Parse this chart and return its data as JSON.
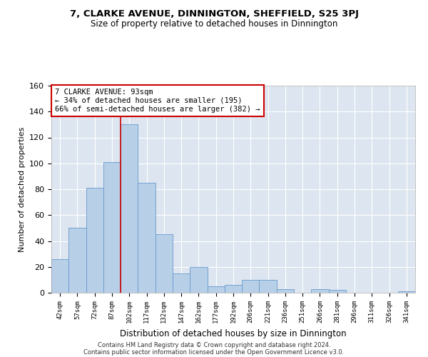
{
  "title": "7, CLARKE AVENUE, DINNINGTON, SHEFFIELD, S25 3PJ",
  "subtitle": "Size of property relative to detached houses in Dinnington",
  "xlabel": "Distribution of detached houses by size in Dinnington",
  "ylabel": "Number of detached properties",
  "categories": [
    "42sqm",
    "57sqm",
    "72sqm",
    "87sqm",
    "102sqm",
    "117sqm",
    "132sqm",
    "147sqm",
    "162sqm",
    "177sqm",
    "192sqm",
    "206sqm",
    "221sqm",
    "236sqm",
    "251sqm",
    "266sqm",
    "281sqm",
    "296sqm",
    "311sqm",
    "326sqm",
    "341sqm"
  ],
  "values": [
    26,
    50,
    81,
    101,
    130,
    85,
    45,
    15,
    20,
    5,
    6,
    10,
    10,
    3,
    0,
    3,
    2,
    0,
    0,
    0,
    1
  ],
  "bar_color": "#b8cfe8",
  "bar_edge_color": "#6699cc",
  "annotation_line1": "7 CLARKE AVENUE: 93sqm",
  "annotation_line2": "← 34% of detached houses are smaller (195)",
  "annotation_line3": "66% of semi-detached houses are larger (382) →",
  "annotation_box_color": "white",
  "annotation_box_edge_color": "#cc0000",
  "vline_color": "#cc0000",
  "vline_x_index": 3.5,
  "ylim": [
    0,
    160
  ],
  "yticks": [
    0,
    20,
    40,
    60,
    80,
    100,
    120,
    140,
    160
  ],
  "background_color": "#dde6f0",
  "grid_color": "white",
  "footer_line1": "Contains HM Land Registry data © Crown copyright and database right 2024.",
  "footer_line2": "Contains public sector information licensed under the Open Government Licence v3.0."
}
